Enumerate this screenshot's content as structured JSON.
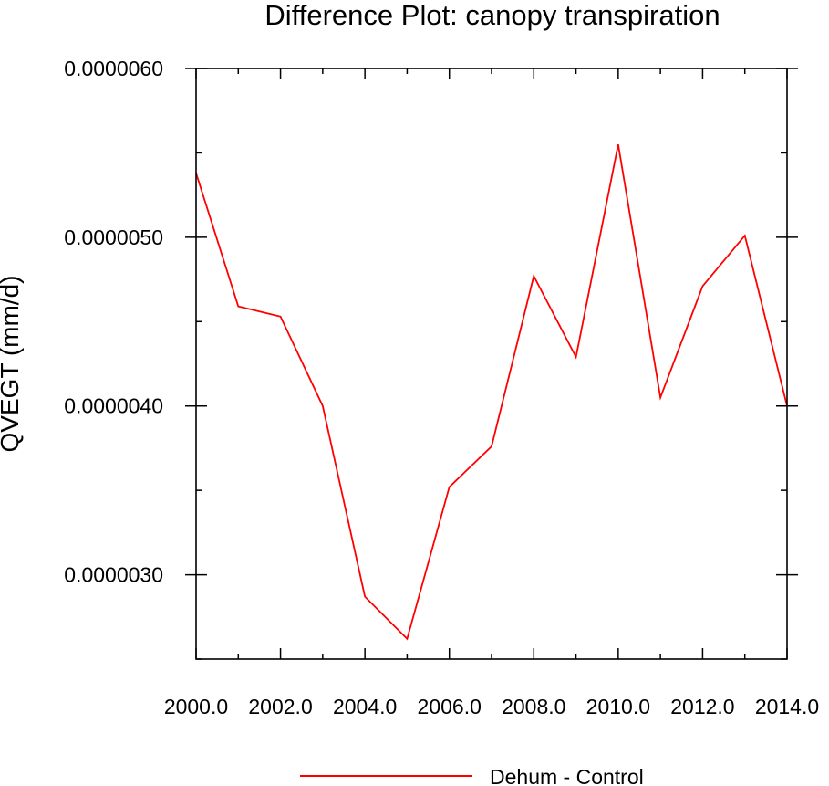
{
  "chart_data": {
    "type": "line",
    "title": "Difference Plot: canopy transpiration",
    "xlabel": "",
    "ylabel": "QVEGT  (mm/d)",
    "xlim": [
      2000,
      2014
    ],
    "ylim": [
      2.5e-06,
      6e-06
    ],
    "x_ticks": [
      2000,
      2002,
      2004,
      2006,
      2008,
      2010,
      2012,
      2014
    ],
    "x_tick_labels": [
      "2000.0",
      "2002.0",
      "2004.0",
      "2006.0",
      "2008.0",
      "2010.0",
      "2012.0",
      "2014.0"
    ],
    "y_ticks": [
      3e-06,
      4e-06,
      5e-06,
      6e-06
    ],
    "y_tick_labels": [
      "0.0000030",
      "0.0000040",
      "0.0000050",
      "0.0000060"
    ],
    "x": [
      2000,
      2001,
      2002,
      2003,
      2004,
      2005,
      2006,
      2007,
      2008,
      2009,
      2010,
      2011,
      2012,
      2013,
      2014
    ],
    "series": [
      {
        "name": "Dehum - Control",
        "color": "#ff0000",
        "values": [
          5.38e-06,
          4.59e-06,
          4.53e-06,
          4e-06,
          2.87e-06,
          2.62e-06,
          3.52e-06,
          3.76e-06,
          4.77e-06,
          4.29e-06,
          5.55e-06,
          4.05e-06,
          4.71e-06,
          5.01e-06,
          4e-06
        ]
      }
    ],
    "grid": false,
    "legend_position": "bottom-center"
  }
}
